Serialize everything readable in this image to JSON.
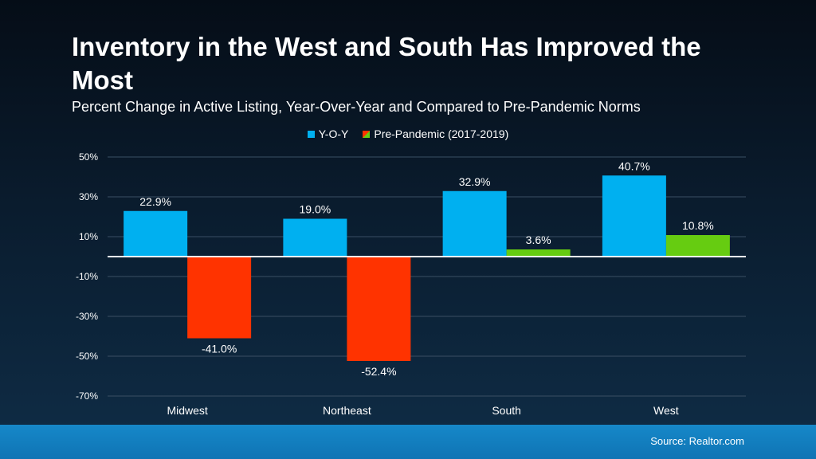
{
  "title": "Inventory in the West and South Has Improved the Most",
  "subtitle": "Percent Change in Active Listing, Year-Over-Year and Compared to Pre-Pandemic Norms",
  "source": "Source: Realtor.com",
  "colors": {
    "yoy": "#00b0f0",
    "pre_negative": "#ff3300",
    "pre_positive": "#66cc11",
    "grid": "#3a4f63",
    "zero_line": "#ffffff"
  },
  "chart_data": {
    "type": "bar",
    "categories": [
      "Midwest",
      "Northeast",
      "South",
      "West"
    ],
    "series": [
      {
        "name": "Y-O-Y",
        "values": [
          22.9,
          19.0,
          32.9,
          40.7
        ]
      },
      {
        "name": "Pre-Pandemic (2017-2019)",
        "values": [
          -41.0,
          -52.4,
          3.6,
          10.8
        ]
      }
    ],
    "value_labels": [
      [
        "22.9%",
        "19.0%",
        "32.9%",
        "40.7%"
      ],
      [
        "-41.0%",
        "-52.4%",
        "3.6%",
        "10.8%"
      ]
    ],
    "yticks": [
      50,
      30,
      10,
      -10,
      -30,
      -50,
      -70
    ],
    "ytick_labels": [
      "50%",
      "30%",
      "10%",
      "-10%",
      "-30%",
      "-50%",
      "-70%"
    ],
    "ylim": [
      -70,
      50
    ],
    "grid": true,
    "legend_position": "top-center"
  }
}
